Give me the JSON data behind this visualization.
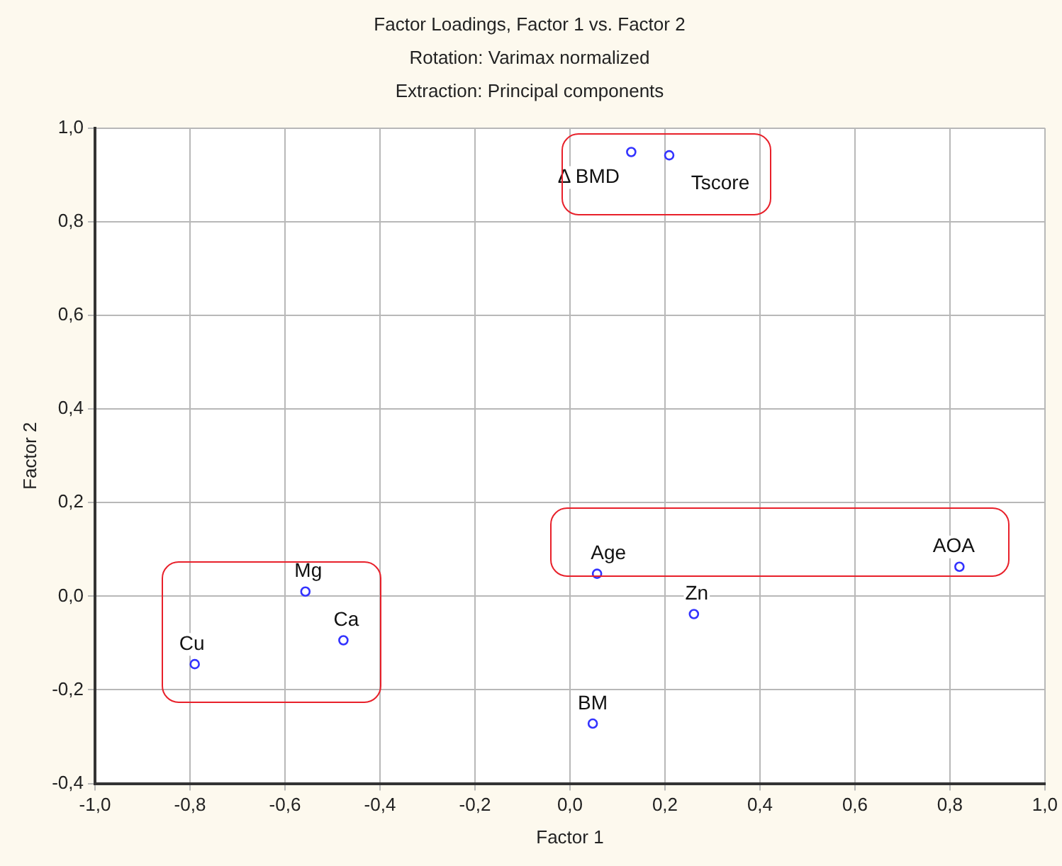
{
  "chart_data": {
    "type": "scatter",
    "title": "Factor Loadings, Factor 1 vs. Factor 2",
    "subtitle": "Rotation: Varimax normalized\nExtraction: Principal components",
    "xlabel": "Factor 1",
    "ylabel": "Factor 2",
    "x": [
      0.129,
      0.209,
      0.057,
      0.82,
      0.261,
      0.048,
      -0.79,
      -0.557,
      -0.477
    ],
    "series": [
      {
        "color": "#3333ff",
        "values": [
          0.949,
          0.942,
          0.048,
          0.063,
          -0.038,
          -0.272,
          -0.145,
          0.01,
          -0.094
        ]
      }
    ],
    "annotations": [
      {
        "text": "Δ BMD",
        "x": 0.129,
        "y": 0.949
      },
      {
        "text": "Tscore",
        "x": 0.209,
        "y": 0.942
      },
      {
        "text": "Age",
        "x": 0.057,
        "y": 0.048
      },
      {
        "text": "AOA",
        "x": 0.82,
        "y": 0.063
      },
      {
        "text": "Zn",
        "x": 0.261,
        "y": -0.038
      },
      {
        "text": "BM",
        "x": 0.048,
        "y": -0.272
      },
      {
        "text": "Cu",
        "x": -0.79,
        "y": -0.145
      },
      {
        "text": "Mg",
        "x": -0.557,
        "y": 0.01
      },
      {
        "text": "Ca",
        "x": -0.477,
        "y": -0.094
      }
    ],
    "xlim": [
      -1,
      1
    ],
    "xticks": [
      {
        "value": -1,
        "label": "-1,0"
      },
      {
        "value": -0.8,
        "label": "-0,8"
      },
      {
        "value": -0.6,
        "label": "-0,6"
      },
      {
        "value": -0.4,
        "label": "-0,4"
      },
      {
        "value": -0.2,
        "label": "-0,2"
      },
      {
        "value": 0,
        "label": "0,0"
      },
      {
        "value": 0.2,
        "label": "0,2"
      },
      {
        "value": 0.4,
        "label": "0,4"
      },
      {
        "value": 0.6,
        "label": "0,6"
      },
      {
        "value": 0.8,
        "label": "0,8"
      },
      {
        "value": 1,
        "label": "1,0"
      }
    ],
    "ylim": [
      -0.4,
      1
    ],
    "yticks": [
      {
        "value": -0.4,
        "label": "-0,4"
      },
      {
        "value": -0.2,
        "label": "-0,2"
      },
      {
        "value": 0,
        "label": "0,0"
      },
      {
        "value": 0.2,
        "label": "0,2"
      },
      {
        "value": 0.4,
        "label": "0,4"
      },
      {
        "value": 0.6,
        "label": "0,6"
      },
      {
        "value": 0.8,
        "label": "0,8"
      },
      {
        "value": 1,
        "label": "1,0"
      }
    ],
    "grid": true,
    "marker": "circle",
    "legend": false
  }
}
